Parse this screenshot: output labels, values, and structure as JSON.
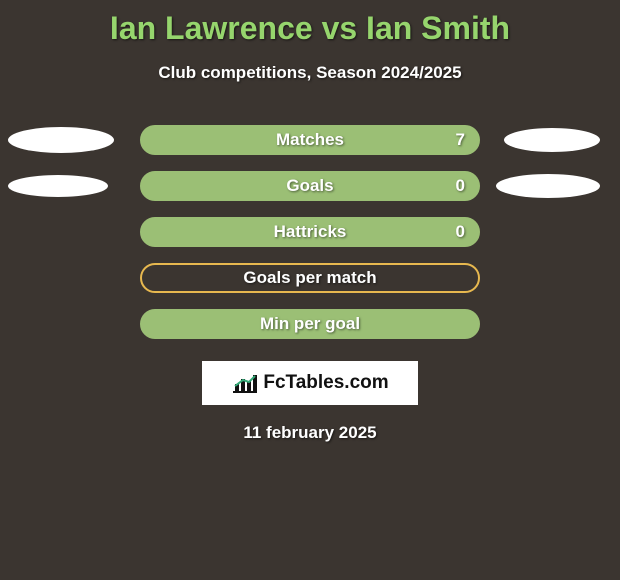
{
  "title": "Ian Lawrence vs Ian Smith",
  "subtitle": "Club competitions, Season 2024/2025",
  "date": "11 february 2025",
  "logo_text": "FcTables.com",
  "colors": {
    "background": "#3b3530",
    "accent_green": "#96d56d",
    "bar_filled": "#9bbf75",
    "bar_outline": "#e7b84f",
    "ellipse": "#ffffff",
    "logo_box": "#ffffff"
  },
  "ellipse_sizes": {
    "row0": {
      "left_w": 106,
      "left_h": 26,
      "right_w": 96,
      "right_h": 24
    },
    "row1": {
      "left_w": 100,
      "left_h": 22,
      "right_w": 104,
      "right_h": 24
    }
  },
  "stats": [
    {
      "label": "Matches",
      "value": "7",
      "show_value": true,
      "style": "filled",
      "left_ellipse": true,
      "right_ellipse": true
    },
    {
      "label": "Goals",
      "value": "0",
      "show_value": true,
      "style": "filled",
      "left_ellipse": true,
      "right_ellipse": true
    },
    {
      "label": "Hattricks",
      "value": "0",
      "show_value": true,
      "style": "filled",
      "left_ellipse": false,
      "right_ellipse": false
    },
    {
      "label": "Goals per match",
      "value": "",
      "show_value": false,
      "style": "outline",
      "left_ellipse": false,
      "right_ellipse": false
    },
    {
      "label": "Min per goal",
      "value": "",
      "show_value": false,
      "style": "filled",
      "left_ellipse": false,
      "right_ellipse": false
    }
  ]
}
